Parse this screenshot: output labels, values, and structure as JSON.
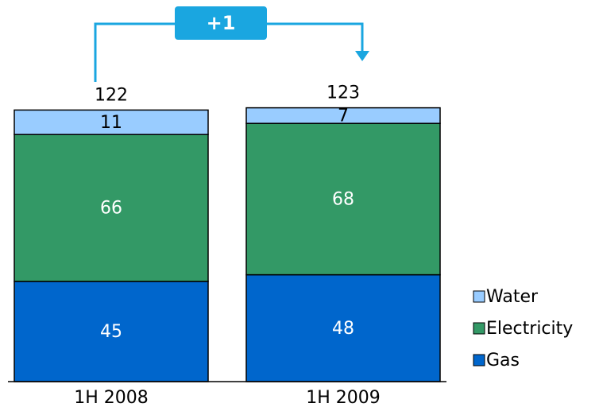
{
  "chart_data": {
    "type": "stacked_bar",
    "categories": [
      "1H 2008",
      "1H 2009"
    ],
    "series": [
      {
        "name": "Gas",
        "color": "#0066cc",
        "values": [
          45,
          48
        ]
      },
      {
        "name": "Electricity",
        "color": "#339966",
        "values": [
          66,
          68
        ]
      },
      {
        "name": "Water",
        "color": "#99ccff",
        "values": [
          11,
          7
        ]
      }
    ],
    "totals": [
      122,
      123
    ],
    "annotation": "+1"
  }
}
